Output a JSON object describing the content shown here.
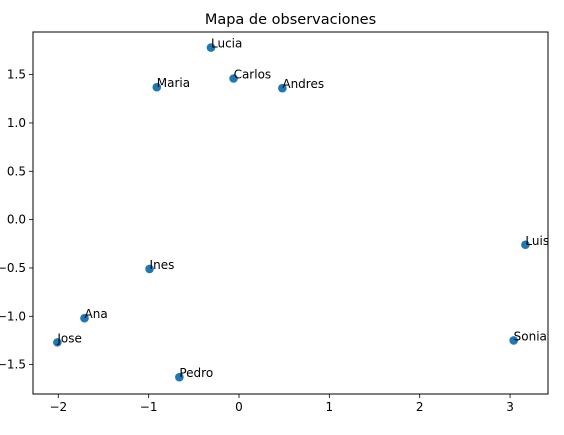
{
  "chart_data": {
    "type": "scatter",
    "title": "Mapa de observaciones",
    "xlabel": "",
    "ylabel": "",
    "xlim": [
      -2.28,
      3.42
    ],
    "ylim": [
      -1.804,
      1.941
    ],
    "x_ticks": [
      -2,
      -1,
      0,
      1,
      2,
      3
    ],
    "y_ticks": [
      -1.5,
      -1.0,
      -0.5,
      0.0,
      0.5,
      1.0,
      1.5
    ],
    "x_tick_labels": [
      "−2",
      "−1",
      "0",
      "1",
      "2",
      "3"
    ],
    "y_tick_labels": [
      "−1.5",
      "−1.0",
      "−0.5",
      "0.0",
      "0.5",
      "1.0",
      "1.5"
    ],
    "grid": false,
    "point_color": "#1f77b4",
    "points": [
      {
        "label": "Lucia",
        "x": -0.31,
        "y": 1.78
      },
      {
        "label": "Maria",
        "x": -0.91,
        "y": 1.37
      },
      {
        "label": "Carlos",
        "x": -0.06,
        "y": 1.46
      },
      {
        "label": "Andres",
        "x": 0.48,
        "y": 1.36
      },
      {
        "label": "Luis",
        "x": 3.17,
        "y": -0.26
      },
      {
        "label": "Ines",
        "x": -0.99,
        "y": -0.51
      },
      {
        "label": "Ana",
        "x": -1.71,
        "y": -1.02
      },
      {
        "label": "Jose",
        "x": -2.01,
        "y": -1.27
      },
      {
        "label": "Sonia",
        "x": 3.04,
        "y": -1.25
      },
      {
        "label": "Pedro",
        "x": -0.66,
        "y": -1.63
      }
    ]
  }
}
